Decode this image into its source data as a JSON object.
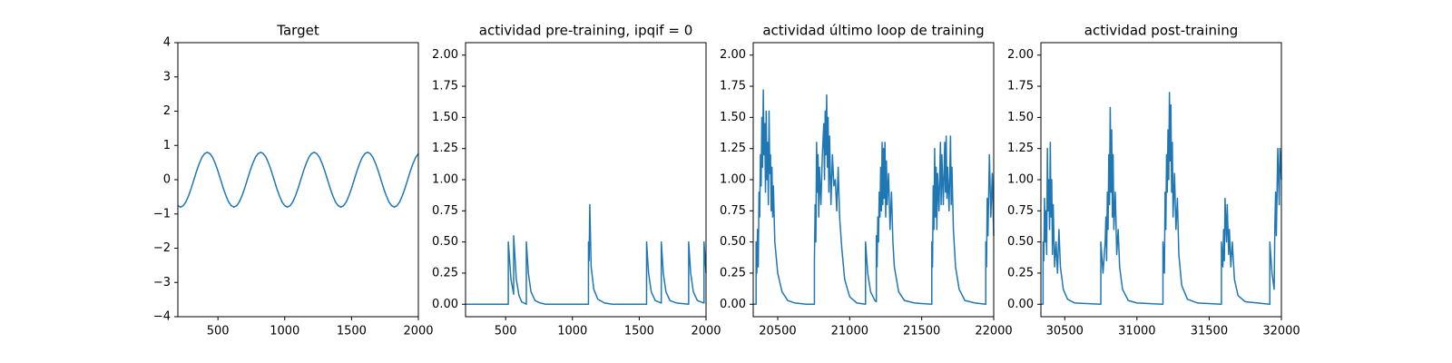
{
  "chart_data": [
    {
      "type": "line",
      "title": "Target",
      "color": "#1f77b4",
      "x": [
        200,
        220,
        240,
        260,
        280,
        300,
        320,
        340,
        360,
        380,
        400,
        420,
        440,
        460,
        480,
        500,
        520,
        540,
        560,
        580,
        600,
        620,
        640,
        660,
        680,
        700,
        720,
        740,
        760,
        780,
        800,
        820,
        840,
        860,
        880,
        900,
        920,
        940,
        960,
        980,
        1000,
        1020,
        1040,
        1060,
        1080,
        1100,
        1120,
        1140,
        1160,
        1180,
        1200,
        1220,
        1240,
        1260,
        1280,
        1300,
        1320,
        1340,
        1360,
        1380,
        1400,
        1420,
        1440,
        1460,
        1480,
        1500,
        1520,
        1540,
        1560,
        1580,
        1600,
        1620,
        1640,
        1660,
        1680,
        1700,
        1720,
        1740,
        1760,
        1780,
        1800,
        1820,
        1840,
        1860,
        1880,
        1900,
        1920,
        1940,
        1960,
        1980,
        2000
      ],
      "values": [
        -0.76,
        -0.8,
        -0.76,
        -0.65,
        -0.47,
        -0.25,
        0,
        0.25,
        0.47,
        0.65,
        0.76,
        0.8,
        0.76,
        0.65,
        0.47,
        0.25,
        0,
        -0.25,
        -0.47,
        -0.65,
        -0.76,
        -0.8,
        -0.76,
        -0.65,
        -0.47,
        -0.25,
        0,
        0.25,
        0.47,
        0.65,
        0.76,
        0.8,
        0.76,
        0.65,
        0.47,
        0.25,
        0,
        -0.25,
        -0.47,
        -0.65,
        -0.76,
        -0.8,
        -0.76,
        -0.65,
        -0.47,
        -0.25,
        0,
        0.25,
        0.47,
        0.65,
        0.76,
        0.8,
        0.76,
        0.65,
        0.47,
        0.25,
        0,
        -0.25,
        -0.47,
        -0.65,
        -0.76,
        -0.8,
        -0.76,
        -0.65,
        -0.47,
        -0.25,
        0,
        0.25,
        0.47,
        0.65,
        0.76,
        0.8,
        0.76,
        0.65,
        0.47,
        0.25,
        0,
        -0.25,
        -0.47,
        -0.65,
        -0.76,
        -0.8,
        -0.76,
        -0.65,
        -0.47,
        -0.25,
        0,
        0.25,
        0.47,
        0.65,
        0.76
      ],
      "xlim": [
        200,
        2000
      ],
      "xticks": [
        500,
        1000,
        1500,
        2000
      ],
      "ylim": [
        -4,
        4
      ],
      "yticks": [
        {
          "value": -4,
          "label": "−4"
        },
        {
          "value": -3,
          "label": "−3"
        },
        {
          "value": -2,
          "label": "−2"
        },
        {
          "value": -1,
          "label": "−1"
        },
        0,
        1,
        2,
        3,
        4
      ]
    },
    {
      "type": "line",
      "title": "actividad pre-training, ipqif = 0",
      "color": "#1f77b4",
      "x": [
        200,
        520,
        520,
        540,
        560,
        560,
        580,
        600,
        620,
        655,
        655,
        670,
        690,
        720,
        760,
        800,
        1120,
        1120,
        1125,
        1130,
        1135,
        1140,
        1160,
        1190,
        1240,
        1300,
        1555,
        1555,
        1570,
        1590,
        1620,
        1665,
        1665,
        1680,
        1700,
        1730,
        1780,
        1870,
        1870,
        1885,
        1905,
        1935,
        1985,
        1985,
        2000
      ],
      "values": [
        0,
        0,
        0.5,
        0.2,
        0.08,
        0.55,
        0.2,
        0.07,
        0.02,
        0,
        0.5,
        0.25,
        0.1,
        0.03,
        0.01,
        0,
        0,
        0.5,
        0.35,
        0.8,
        0.55,
        0.3,
        0.12,
        0.04,
        0.01,
        0,
        0,
        0.5,
        0.25,
        0.1,
        0.03,
        0.01,
        0.5,
        0.25,
        0.1,
        0.03,
        0.01,
        0,
        0.5,
        0.25,
        0.1,
        0.03,
        0.01,
        0.5,
        0.25
      ],
      "xlim": [
        200,
        2000
      ],
      "xticks": [
        500,
        1000,
        1500,
        2000
      ],
      "ylim": [
        -0.1,
        2.1
      ],
      "yticks": [
        {
          "value": 0,
          "label": "0.00"
        },
        {
          "value": 0.25,
          "label": "0.25"
        },
        {
          "value": 0.5,
          "label": "0.50"
        },
        {
          "value": 0.75,
          "label": "0.75"
        },
        {
          "value": 1,
          "label": "1.00"
        },
        {
          "value": 1.25,
          "label": "1.25"
        },
        {
          "value": 1.5,
          "label": "1.50"
        },
        {
          "value": 1.75,
          "label": "1.75"
        },
        {
          "value": 2,
          "label": "2.00"
        }
      ]
    },
    {
      "type": "line",
      "title": "actividad último loop de training",
      "color": "#1f77b4",
      "x": [
        20330,
        20350,
        20350,
        20355,
        20360,
        20365,
        20370,
        20375,
        20380,
        20385,
        20390,
        20395,
        20400,
        20405,
        20410,
        20415,
        20420,
        20425,
        20430,
        20435,
        20440,
        20445,
        20450,
        20455,
        20460,
        20465,
        20470,
        20480,
        20500,
        20530,
        20570,
        20620,
        20700,
        20755,
        20755,
        20760,
        20765,
        20770,
        20775,
        20780,
        20785,
        20790,
        20800,
        20810,
        20820,
        20825,
        20830,
        20835,
        20840,
        20845,
        20850,
        20855,
        20860,
        20870,
        20880,
        20890,
        20900,
        20910,
        20920,
        20930,
        20945,
        20965,
        21000,
        21050,
        21110,
        21110,
        21125,
        21145,
        21175,
        21185,
        21185,
        21190,
        21195,
        21200,
        21205,
        21210,
        21215,
        21220,
        21225,
        21230,
        21235,
        21240,
        21245,
        21250,
        21255,
        21260,
        21270,
        21280,
        21290,
        21300,
        21310,
        21340,
        21380,
        21450,
        21570,
        21570,
        21575,
        21580,
        21585,
        21590,
        21595,
        21600,
        21605,
        21610,
        21620,
        21630,
        21635,
        21640,
        21650,
        21660,
        21665,
        21670,
        21675,
        21680,
        21690,
        21700,
        21705,
        21710,
        21720,
        21735,
        21760,
        21800,
        21870,
        21945,
        21945,
        21950,
        21955,
        21960,
        21970,
        21980,
        21990,
        22000
      ],
      "values": [
        0,
        0,
        0.5,
        0.25,
        0.6,
        0.3,
        0.9,
        0.7,
        1.2,
        0.95,
        1.5,
        1.1,
        1.72,
        1.2,
        1.45,
        0.9,
        1.55,
        1.0,
        1.3,
        0.8,
        1.55,
        1.05,
        1.2,
        0.75,
        1.1,
        0.7,
        0.95,
        0.5,
        0.25,
        0.1,
        0.03,
        0.01,
        0,
        0,
        0.35,
        0.8,
        0.5,
        1.3,
        0.9,
        1.2,
        0.7,
        1.1,
        0.8,
        1.2,
        1.45,
        1.0,
        1.55,
        1.2,
        1.68,
        1.1,
        1.5,
        0.9,
        1.35,
        0.8,
        1.2,
        0.95,
        1.0,
        0.75,
        1.1,
        0.7,
        0.45,
        0.2,
        0.06,
        0.01,
        0,
        0.5,
        0.25,
        0.1,
        0.03,
        0.02,
        0.55,
        0.3,
        0.7,
        0.5,
        0.9,
        0.7,
        1.1,
        0.75,
        1.3,
        0.8,
        1.25,
        0.85,
        1.3,
        0.7,
        1.15,
        0.8,
        1.05,
        0.6,
        0.9,
        0.5,
        0.3,
        0.1,
        0.03,
        0.01,
        0,
        0.5,
        0.3,
        0.95,
        0.6,
        1.25,
        0.7,
        1.1,
        0.6,
        1.05,
        0.75,
        1.3,
        0.8,
        1.2,
        0.8,
        1.3,
        0.9,
        1.35,
        0.85,
        1.1,
        0.75,
        1.35,
        0.8,
        1.1,
        0.6,
        0.3,
        0.12,
        0.03,
        0.01,
        0,
        0.5,
        0.3,
        0.85,
        0.55,
        1.2,
        0.7,
        1.05,
        0.55
      ],
      "xlim": [
        20330,
        22000
      ],
      "xticks": [
        20500,
        21000,
        21500,
        22000
      ],
      "ylim": [
        -0.1,
        2.1
      ],
      "yticks": [
        {
          "value": 0,
          "label": "0.00"
        },
        {
          "value": 0.25,
          "label": "0.25"
        },
        {
          "value": 0.5,
          "label": "0.50"
        },
        {
          "value": 0.75,
          "label": "0.75"
        },
        {
          "value": 1,
          "label": "1.00"
        },
        {
          "value": 1.25,
          "label": "1.25"
        },
        {
          "value": 1.5,
          "label": "1.50"
        },
        {
          "value": 1.75,
          "label": "1.75"
        },
        {
          "value": 2,
          "label": "2.00"
        }
      ]
    },
    {
      "type": "line",
      "title": "actividad post-training",
      "color": "#1f77b4",
      "x": [
        30335,
        30350,
        30350,
        30355,
        30360,
        30365,
        30370,
        30375,
        30380,
        30385,
        30390,
        30395,
        30400,
        30405,
        30410,
        30415,
        30420,
        30430,
        30440,
        30450,
        30460,
        30470,
        30490,
        30520,
        30570,
        30750,
        30750,
        30765,
        30780,
        30785,
        30790,
        30795,
        30800,
        30805,
        30810,
        30815,
        30820,
        30825,
        30830,
        30835,
        30840,
        30850,
        30860,
        30870,
        30880,
        30900,
        30940,
        31000,
        31180,
        31180,
        31190,
        31195,
        31200,
        31205,
        31210,
        31215,
        31220,
        31225,
        31230,
        31235,
        31240,
        31245,
        31250,
        31260,
        31270,
        31280,
        31290,
        31310,
        31350,
        31420,
        31585,
        31585,
        31595,
        31600,
        31605,
        31610,
        31620,
        31625,
        31635,
        31640,
        31650,
        31660,
        31675,
        31700,
        31750,
        31920,
        31920,
        31935,
        31950,
        31955,
        31960,
        31965,
        31975,
        31985,
        31990,
        32000
      ],
      "values": [
        0,
        0,
        0.5,
        0.35,
        0.85,
        0.5,
        0.75,
        0.4,
        1.25,
        0.75,
        1.0,
        0.6,
        1.3,
        0.7,
        1.0,
        0.4,
        0.8,
        0.3,
        0.5,
        0.25,
        0.6,
        0.3,
        0.12,
        0.04,
        0.01,
        0,
        0.5,
        0.25,
        0.5,
        0.7,
        0.35,
        0.9,
        0.6,
        1.2,
        0.8,
        1.58,
        0.9,
        1.4,
        0.7,
        1.2,
        0.6,
        0.9,
        0.4,
        0.6,
        0.3,
        0.12,
        0.03,
        0.01,
        0,
        0.5,
        0.25,
        0.9,
        0.6,
        1.2,
        0.9,
        1.4,
        1.0,
        1.7,
        1.15,
        1.6,
        0.9,
        1.3,
        0.7,
        1.05,
        0.6,
        0.85,
        0.4,
        0.15,
        0.04,
        0.01,
        0,
        0.5,
        0.3,
        0.6,
        0.35,
        0.85,
        0.5,
        0.8,
        0.4,
        0.6,
        0.3,
        0.5,
        0.2,
        0.07,
        0.02,
        0,
        0.5,
        0.25,
        0.12,
        0.65,
        0.9,
        0.55,
        1.25,
        0.8,
        1.25,
        1.0
      ],
      "xlim": [
        30335,
        32000
      ],
      "xticks": [
        30500,
        31000,
        31500,
        32000
      ],
      "ylim": [
        -0.1,
        2.1
      ],
      "yticks": [
        {
          "value": 0,
          "label": "0.00"
        },
        {
          "value": 0.25,
          "label": "0.25"
        },
        {
          "value": 0.5,
          "label": "0.50"
        },
        {
          "value": 0.75,
          "label": "0.75"
        },
        {
          "value": 1,
          "label": "1.00"
        },
        {
          "value": 1.25,
          "label": "1.25"
        },
        {
          "value": 1.5,
          "label": "1.50"
        },
        {
          "value": 1.75,
          "label": "1.75"
        },
        {
          "value": 2,
          "label": "2.00"
        }
      ]
    }
  ]
}
